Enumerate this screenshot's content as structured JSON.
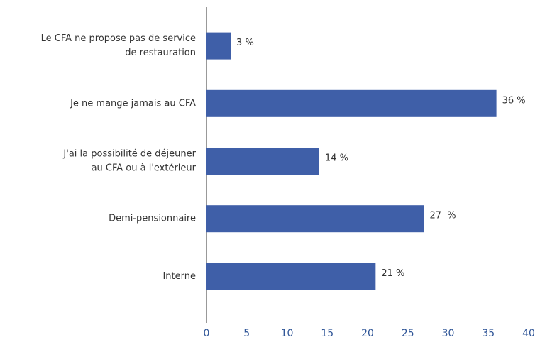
{
  "chart_data": {
    "type": "hbar",
    "categories": [
      [
        "Le CFA ne propose pas de service",
        "de restauration"
      ],
      [
        "Je ne mange jamais au CFA"
      ],
      [
        "J'ai la possibilité de déjeuner",
        "au CFA ou à l'extérieur"
      ],
      [
        "Demi-pensionnaire"
      ],
      [
        "Interne"
      ]
    ],
    "values": [
      3,
      36,
      14,
      27,
      21
    ],
    "value_labels": [
      "3 %",
      "36 %",
      "14 %",
      "27  %",
      "21 %"
    ],
    "color": "#3f5fa8",
    "xlim": [
      0,
      40
    ],
    "xticks": [
      0,
      5,
      10,
      15,
      20,
      25,
      30,
      35,
      40
    ]
  }
}
